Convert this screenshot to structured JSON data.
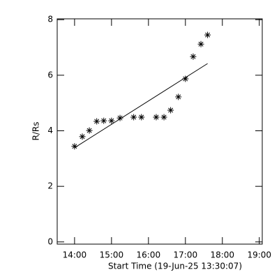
{
  "chart_data": {
    "type": "scatter",
    "xlabel": "Start Time (19-Jun-25 13:30:07)",
    "ylabel": "R/Rs",
    "color": "#000000",
    "xlim": [
      13.53,
      19.08
    ],
    "ylim": [
      -0.08,
      8.03
    ],
    "xticks": [
      {
        "value": 14,
        "label": "14:00"
      },
      {
        "value": 15,
        "label": "15:00"
      },
      {
        "value": 16,
        "label": "16:00"
      },
      {
        "value": 17,
        "label": "17:00"
      },
      {
        "value": 18,
        "label": "18:00"
      },
      {
        "value": 19,
        "label": "19:00"
      }
    ],
    "yticks": [
      0,
      2,
      4,
      6,
      8
    ],
    "series": [
      {
        "x": [
          14.0,
          14.21,
          14.4,
          14.6,
          14.79,
          15.0,
          15.23,
          15.6,
          15.81,
          16.21,
          16.42,
          16.6,
          16.81,
          17.0,
          17.21,
          17.42,
          17.6
        ],
        "values": [
          3.44,
          3.79,
          4.01,
          4.34,
          4.36,
          4.36,
          4.46,
          4.49,
          4.49,
          4.49,
          4.49,
          4.74,
          5.22,
          5.87,
          6.67,
          7.12,
          7.45
        ]
      },
      {
        "x": [
          14.0,
          17.6
        ],
        "values": [
          3.39,
          6.42
        ]
      }
    ]
  }
}
